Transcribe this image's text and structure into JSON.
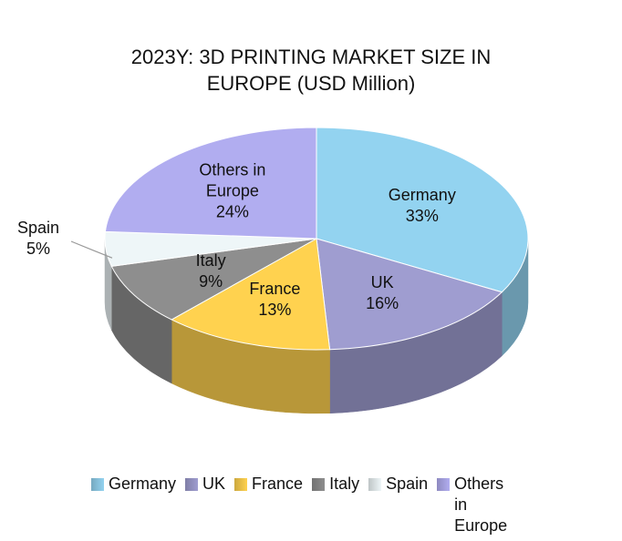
{
  "chart_data": {
    "type": "pie3d",
    "title": "2023Y: 3D PRINTING MARKET SIZE IN EUROPE (USD Million)",
    "categories": [
      "Germany",
      "UK",
      "France",
      "Italy",
      "Spain",
      "Others in Europe"
    ],
    "values": [
      33,
      16,
      13,
      9,
      5,
      24
    ],
    "value_labels": [
      "33%",
      "16%",
      "13%",
      "9%",
      "5%",
      "24%"
    ],
    "colors": [
      "#93d3f0",
      "#9f9dd0",
      "#ffd24f",
      "#8e8e8e",
      "#eef6f8",
      "#b1adf0"
    ],
    "legend": "bottom"
  }
}
